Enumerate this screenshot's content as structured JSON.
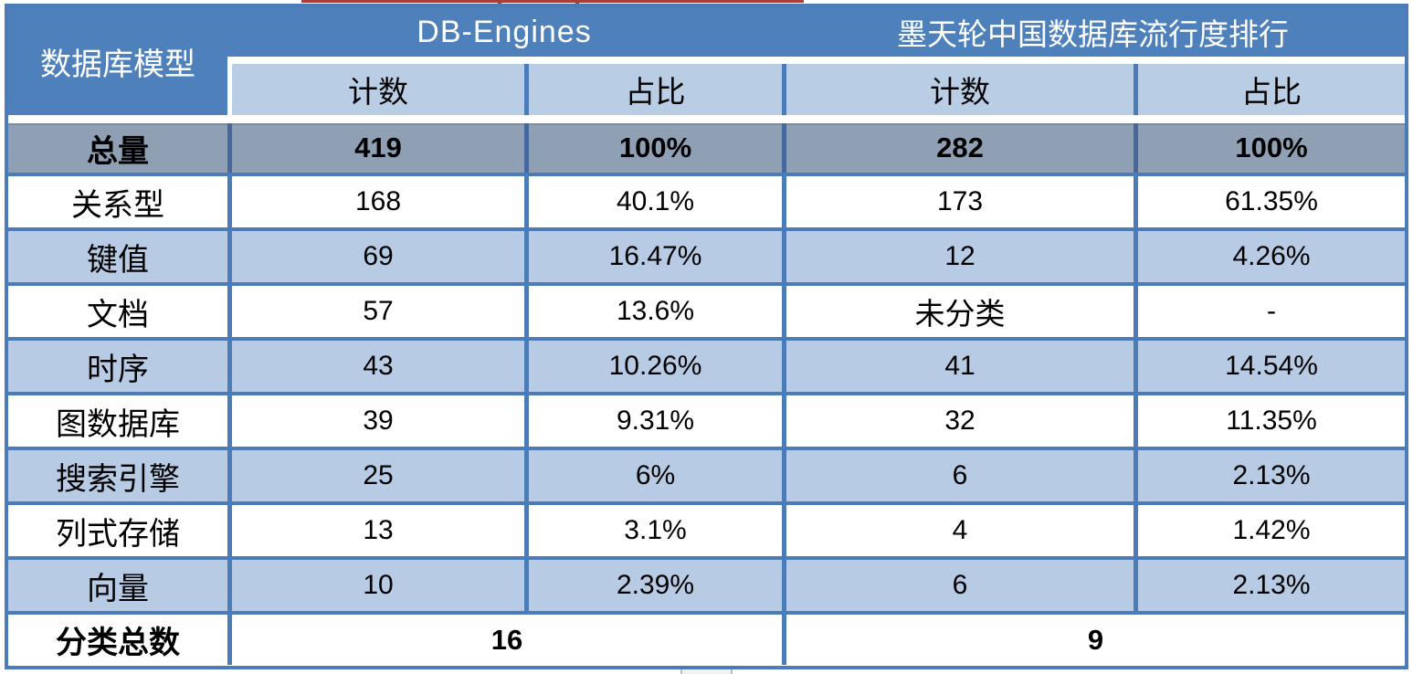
{
  "colors": {
    "header_blue": "#4e80bc",
    "subheader_light_blue": "#b9cde5",
    "row_light_blue": "#b7cbe4",
    "total_row_gray": "#90a0b4",
    "border_blue": "#4c7cb8",
    "dark_divider_blue": "#44679e",
    "underline_red": "#a84038",
    "text_black": "#000000",
    "text_white": "#ffffff"
  },
  "chart_data": {
    "type": "table",
    "corner_header": "数据库模型",
    "column_groups": [
      {
        "title": "DB-Engines",
        "columns": [
          "计数",
          "占比"
        ]
      },
      {
        "title": "墨天轮中国数据库流行度排行",
        "columns": [
          "计数",
          "占比"
        ]
      }
    ],
    "rows": [
      {
        "label": "总量",
        "values": [
          "419",
          "100%",
          "282",
          "100%"
        ],
        "emphasis": true
      },
      {
        "label": "关系型",
        "values": [
          "168",
          "40.1%",
          "173",
          "61.35%"
        ]
      },
      {
        "label": "键值",
        "values": [
          "69",
          "16.47%",
          "12",
          "4.26%"
        ]
      },
      {
        "label": "文档",
        "values": [
          "57",
          "13.6%",
          "未分类",
          "-"
        ]
      },
      {
        "label": "时序",
        "values": [
          "43",
          "10.26%",
          "41",
          "14.54%"
        ]
      },
      {
        "label": "图数据库",
        "values": [
          "39",
          "9.31%",
          "32",
          "11.35%"
        ]
      },
      {
        "label": "搜索引擎",
        "values": [
          "25",
          "6%",
          "6",
          "2.13%"
        ]
      },
      {
        "label": "列式存储",
        "values": [
          "13",
          "3.1%",
          "4",
          "1.42%"
        ]
      },
      {
        "label": "向量",
        "values": [
          "10",
          "2.39%",
          "6",
          "2.13%"
        ]
      }
    ],
    "footer": {
      "label": "分类总数",
      "values": [
        "16",
        "9"
      ]
    }
  }
}
